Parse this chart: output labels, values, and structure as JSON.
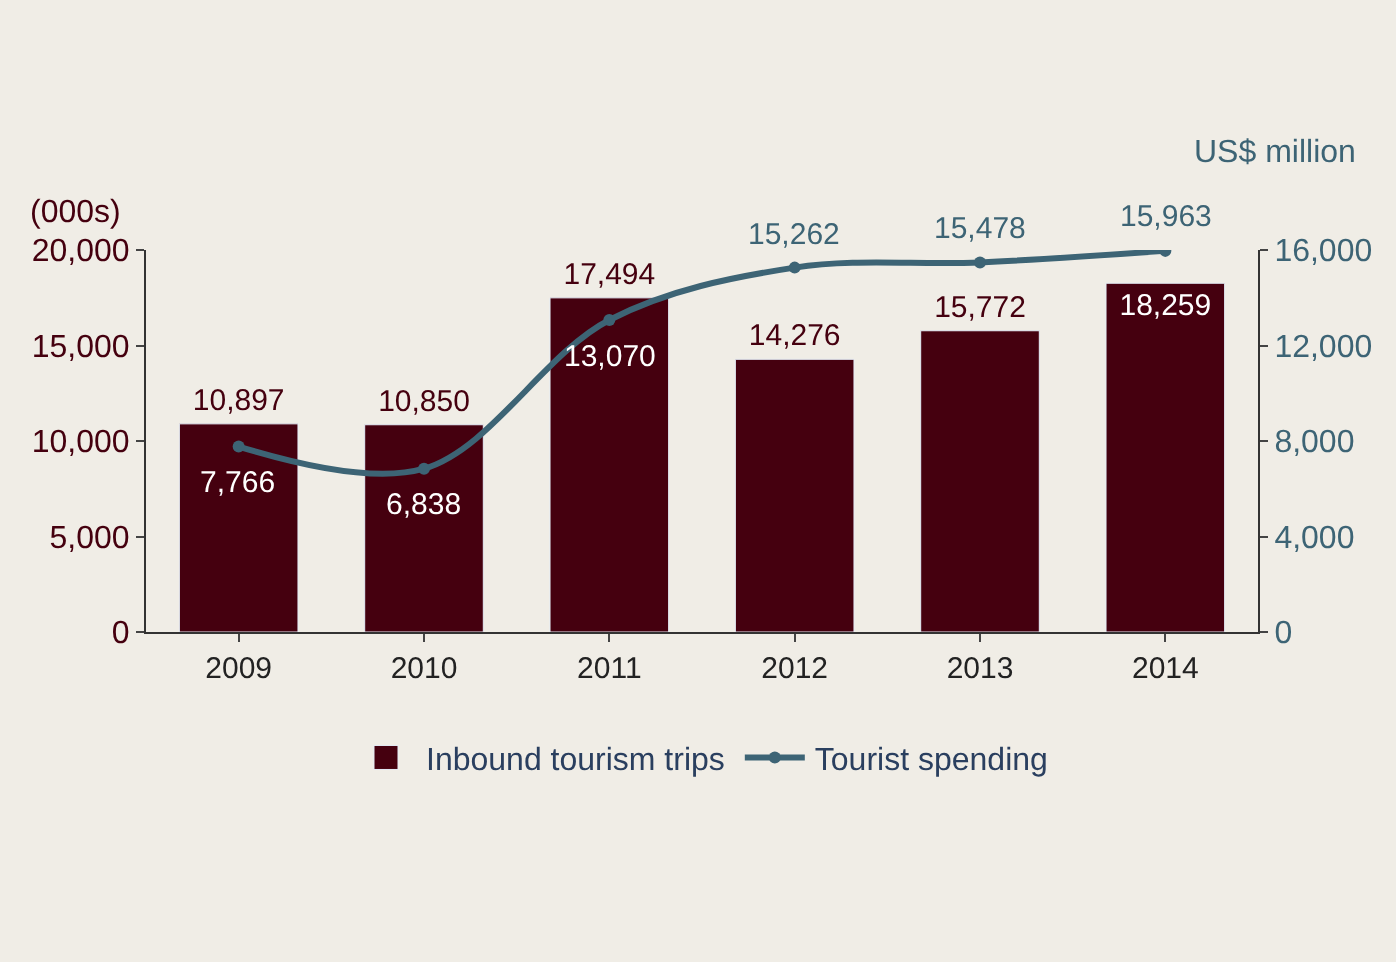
{
  "chart_data": {
    "type": "bar",
    "categories": [
      "2009",
      "2010",
      "2011",
      "2012",
      "2013",
      "2014"
    ],
    "ylabel": "(000s)",
    "y2label": "US$ million",
    "series": [
      {
        "name": "Inbound tourism trips",
        "color": "#45000f",
        "values": [
          10897,
          10850,
          17494,
          14276,
          15772,
          18259
        ],
        "value_labels": [
          "10,897",
          "10,850",
          "17,494",
          "14,276",
          "15,772",
          "18,259"
        ]
      },
      {
        "name": "Tourist spending",
        "type": "line",
        "axis": "y2",
        "color": "#3d6475",
        "values": [
          7766,
          6838,
          13070,
          15262,
          15478,
          15963
        ],
        "value_labels": [
          "7,766",
          "6,838",
          "13,070",
          "15,262",
          "15,478",
          "15,963"
        ]
      }
    ],
    "ylim": [
      0,
      20000
    ],
    "yticks": [
      {
        "value": 0,
        "label": "0"
      },
      {
        "value": 5000,
        "label": "5,000"
      },
      {
        "value": 10000,
        "label": "10,000"
      },
      {
        "value": 15000,
        "label": "15,000"
      },
      {
        "value": 20000,
        "label": "20,000"
      }
    ],
    "y2lim": [
      0,
      16000
    ],
    "y2ticks": [
      {
        "value": 0,
        "label": "0"
      },
      {
        "value": 4000,
        "label": "4,000"
      },
      {
        "value": 8000,
        "label": "8,000"
      },
      {
        "value": 12000,
        "label": "12,000"
      },
      {
        "value": 16000,
        "label": "16,000"
      }
    ],
    "legend": "bottom",
    "grid": false,
    "marker": "circle",
    "line_style": "solid"
  }
}
